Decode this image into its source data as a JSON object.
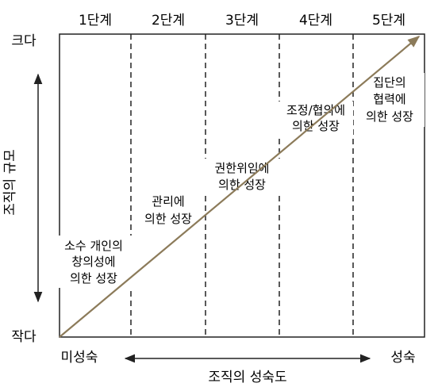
{
  "stages": [
    "1단계",
    "2단계",
    "3단계",
    "4단계",
    "5단계"
  ],
  "y_axis": {
    "top": "크다",
    "bottom": "작다",
    "title": "조직의 규모"
  },
  "x_axis": {
    "left": "미성숙",
    "right": "성숙",
    "title": "조직의 성숙도"
  },
  "growth_labels": [
    [
      "소수 개인의",
      "창의성에",
      "의한 성장"
    ],
    [
      "관리에",
      "의한 성장"
    ],
    [
      "권한위임에",
      "의한 성장"
    ],
    [
      "조정/협의에",
      "의한 성장"
    ],
    [
      "집단의",
      "협력에",
      "의한 성장"
    ]
  ],
  "colors": {
    "growth_line": "#8c7b5a",
    "frame": "#222222"
  }
}
